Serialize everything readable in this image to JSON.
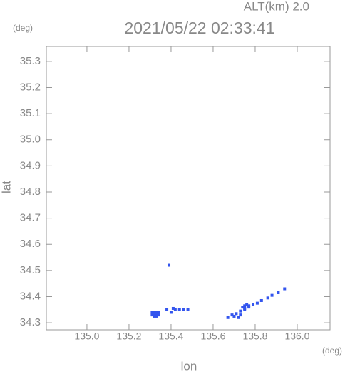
{
  "chart_data": {
    "type": "scatter",
    "title": "2021/05/22 02:33:41",
    "subtitle": "ALT(km) 2.0",
    "y_unit": "(deg)",
    "x_unit": "(deg)",
    "x_label": "lon",
    "y_label": "lat",
    "color": "#3355ee",
    "x": [
      135.31,
      135.32,
      135.33,
      135.34,
      135.31,
      135.32,
      135.33,
      135.34,
      135.32,
      135.33,
      135.39,
      135.38,
      135.4,
      135.42,
      135.44,
      135.46,
      135.48,
      135.41,
      135.67,
      135.69,
      135.71,
      135.73,
      135.75,
      135.77,
      135.79,
      135.81,
      135.83,
      135.86,
      135.88,
      135.91,
      135.94,
      135.74,
      135.75,
      135.76,
      135.77,
      135.75,
      135.73,
      135.7,
      135.72
    ],
    "y": [
      34.34,
      34.34,
      34.34,
      34.34,
      34.33,
      34.33,
      34.33,
      34.33,
      34.325,
      34.325,
      34.52,
      34.35,
      34.34,
      34.35,
      34.35,
      34.35,
      34.35,
      34.355,
      34.32,
      34.33,
      34.335,
      34.345,
      34.35,
      34.36,
      34.37,
      34.375,
      34.385,
      34.395,
      34.405,
      34.415,
      34.43,
      34.36,
      34.365,
      34.37,
      34.365,
      34.355,
      34.33,
      34.325,
      34.32
    ],
    "xlim": [
      134.807,
      136.156
    ],
    "ylim": [
      34.273,
      35.357
    ],
    "xticks": [
      {
        "value": 135.0,
        "label": "135.0"
      },
      135.2,
      135.4,
      135.6,
      135.8,
      {
        "value": 136.0,
        "label": "136.0"
      }
    ],
    "yticks": [
      35.3,
      35.2,
      35.1,
      {
        "value": 35.0,
        "label": "35.0"
      },
      34.9,
      34.8,
      34.7,
      34.6,
      34.5,
      34.4,
      34.3
    ]
  }
}
